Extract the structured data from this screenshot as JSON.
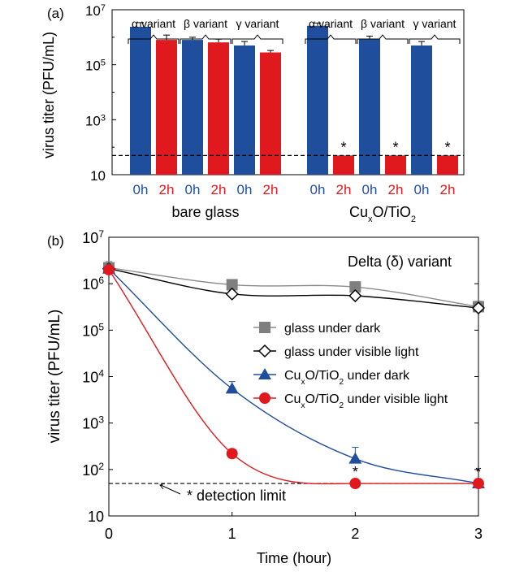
{
  "chart_data": [
    {
      "panel": "(a)",
      "type": "bar",
      "ylabel": "virus titer (PFU/mL)",
      "yscale": "log",
      "ylim": [
        10,
        10000000
      ],
      "yticks": [
        {
          "value": 10,
          "base": "10",
          "exp": ""
        },
        {
          "value": 1000,
          "base": "10",
          "exp": "3"
        },
        {
          "value": 100000,
          "base": "10",
          "exp": "5"
        },
        {
          "value": 10000000,
          "base": "10",
          "exp": "7"
        }
      ],
      "detection_limit": 50,
      "groups": [
        {
          "label_main": "bare glass",
          "variants": [
            {
              "label": "α variant",
              "bars": [
                {
                  "time": "0h",
                  "color": "#1f4e9c",
                  "value": 2400000,
                  "err_hi": 3400000,
                  "marker": ""
                },
                {
                  "time": "2h",
                  "color": "#e0191e",
                  "value": 800000,
                  "err_hi": 1200000,
                  "marker": ""
                }
              ]
            },
            {
              "label": "β variant",
              "bars": [
                {
                  "time": "0h",
                  "color": "#1f4e9c",
                  "value": 800000,
                  "err_hi": 1000000,
                  "marker": ""
                },
                {
                  "time": "2h",
                  "color": "#e0191e",
                  "value": 650000,
                  "err_hi": 850000,
                  "marker": ""
                }
              ]
            },
            {
              "label": "γ variant",
              "bars": [
                {
                  "time": "0h",
                  "color": "#1f4e9c",
                  "value": 500000,
                  "err_hi": 700000,
                  "marker": ""
                },
                {
                  "time": "2h",
                  "color": "#e0191e",
                  "value": 280000,
                  "err_hi": 330000,
                  "marker": ""
                }
              ]
            }
          ]
        },
        {
          "label_main": "CuxO/TiO2",
          "label_parts": [
            {
              "t": "Cu",
              "s": ""
            },
            {
              "t": "x",
              "s": "sub"
            },
            {
              "t": "O/TiO",
              "s": ""
            },
            {
              "t": "2",
              "s": "sub"
            }
          ],
          "variants": [
            {
              "label": "α variant",
              "bars": [
                {
                  "time": "0h",
                  "color": "#1f4e9c",
                  "value": 2600000,
                  "err_hi": 3300000,
                  "marker": ""
                },
                {
                  "time": "2h",
                  "color": "#e0191e",
                  "value": 50,
                  "err_hi": 50,
                  "marker": "*"
                }
              ]
            },
            {
              "label": "β variant",
              "bars": [
                {
                  "time": "0h",
                  "color": "#1f4e9c",
                  "value": 850000,
                  "err_hi": 1100000,
                  "marker": ""
                },
                {
                  "time": "2h",
                  "color": "#e0191e",
                  "value": 50,
                  "err_hi": 50,
                  "marker": "*"
                }
              ]
            },
            {
              "label": "γ variant",
              "bars": [
                {
                  "time": "0h",
                  "color": "#1f4e9c",
                  "value": 500000,
                  "err_hi": 700000,
                  "marker": ""
                },
                {
                  "time": "2h",
                  "color": "#e0191e",
                  "value": 50,
                  "err_hi": 50,
                  "marker": "*"
                }
              ]
            }
          ]
        }
      ]
    },
    {
      "panel": "(b)",
      "type": "line",
      "title": "Delta (δ) variant",
      "xlabel": "Time (hour)",
      "ylabel": "virus titer (PFU/mL)",
      "yscale": "log",
      "xlim": [
        0,
        3
      ],
      "ylim": [
        10,
        10000000
      ],
      "xticks": [
        "0",
        "1",
        "2",
        "3"
      ],
      "yticks": [
        {
          "value": 10,
          "base": "10",
          "exp": ""
        },
        {
          "value": 100,
          "base": "10",
          "exp": "2"
        },
        {
          "value": 1000,
          "base": "10",
          "exp": "3"
        },
        {
          "value": 10000,
          "base": "10",
          "exp": "4"
        },
        {
          "value": 100000,
          "base": "10",
          "exp": "5"
        },
        {
          "value": 1000000,
          "base": "10",
          "exp": "6"
        },
        {
          "value": 10000000,
          "base": "10",
          "exp": "7"
        }
      ],
      "detection_limit": 50,
      "detection_label": "* detection limit",
      "significance_markers": [
        {
          "x": 2,
          "label": "*"
        },
        {
          "x": 3,
          "label": "*"
        }
      ],
      "legend_position": "center-right",
      "series": [
        {
          "name": "glass under dark",
          "name_parts": [
            {
              "t": "glass under dark",
              "s": ""
            }
          ],
          "marker": "square",
          "color": "#7f7f7f",
          "line_color": "#8a8a8a",
          "x": [
            0,
            1,
            2,
            3
          ],
          "y": [
            2200000,
            950000,
            850000,
            320000
          ],
          "err": [
            3000000,
            0,
            1100000,
            420000
          ]
        },
        {
          "name": "glass under visible light",
          "name_parts": [
            {
              "t": "glass under visible light",
              "s": ""
            }
          ],
          "marker": "diamond",
          "color": "#000000",
          "line_color": "#000000",
          "x": [
            0,
            1,
            2,
            3
          ],
          "y": [
            2100000,
            600000,
            550000,
            300000
          ],
          "err": [
            0,
            0,
            0,
            0
          ]
        },
        {
          "name": "CuxO/TiO2 under dark",
          "name_parts": [
            {
              "t": "Cu",
              "s": ""
            },
            {
              "t": "x",
              "s": "sub"
            },
            {
              "t": "O/TiO",
              "s": ""
            },
            {
              "t": "2",
              "s": "sub"
            },
            {
              "t": " under dark",
              "s": ""
            }
          ],
          "marker": "triangle",
          "color": "#1f4e9c",
          "line_color": "#1f4e9c",
          "x": [
            0,
            1,
            2,
            3
          ],
          "y": [
            2100000,
            5500,
            170,
            50
          ],
          "err": [
            0,
            7800,
            300,
            0
          ]
        },
        {
          "name": "CuxO/TiO2 under visible light",
          "name_parts": [
            {
              "t": "Cu",
              "s": ""
            },
            {
              "t": "x",
              "s": "sub"
            },
            {
              "t": "O/TiO",
              "s": ""
            },
            {
              "t": "2",
              "s": "sub"
            },
            {
              "t": " under visible light",
              "s": ""
            }
          ],
          "marker": "circle",
          "color": "#e0191e",
          "line_color": "#e0191e",
          "x": [
            0,
            1,
            2,
            3
          ],
          "y": [
            2000000,
            220,
            50,
            50
          ],
          "err": [
            0,
            0,
            0,
            0
          ]
        }
      ]
    }
  ]
}
